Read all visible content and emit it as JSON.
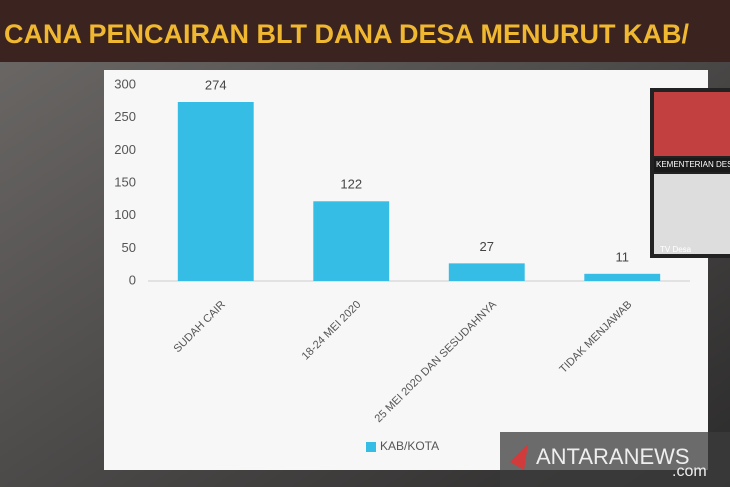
{
  "chart_data": {
    "type": "bar",
    "title": "CANA PENCAIRAN BLT DANA DESA MENURUT KAB/",
    "categories": [
      "SUDAH CAIR",
      "18-24 MEI 2020",
      "25 MEI 2020 DAN SESUDAHNYA",
      "TIDAK MENJAWAB"
    ],
    "series": [
      {
        "name": "KAB/KOTA",
        "color": "#35bde6",
        "values": [
          274,
          122,
          27,
          11
        ]
      }
    ],
    "ylim": [
      0,
      300
    ],
    "yticks": [
      0,
      50,
      100,
      150,
      200,
      250,
      300
    ],
    "grid": false,
    "legend": "bottom"
  },
  "overlay": {
    "inset_caption": "KEMENTERIAN DES",
    "inset_channel": "TV Desa",
    "watermark": "ANTARANEWS",
    "watermark_suffix": ".com"
  }
}
